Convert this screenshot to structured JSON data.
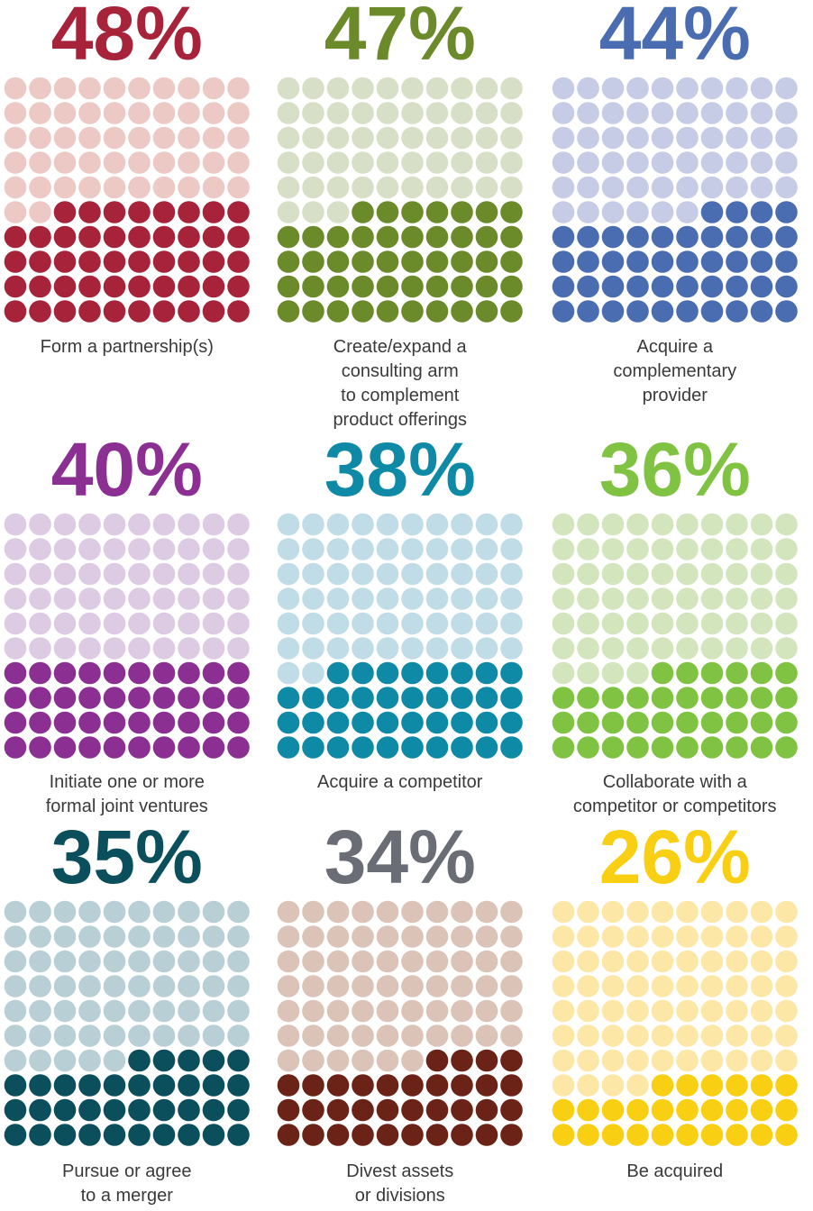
{
  "chart_data": [
    {
      "type": "waffle",
      "values": [
        48
      ],
      "value_labels": [
        "48%"
      ],
      "label": "Form a partnership(s)",
      "color": "#a6233a",
      "empty_color": "#ecc9c5",
      "title_color": "#a6233a"
    },
    {
      "type": "waffle",
      "values": [
        47
      ],
      "value_labels": [
        "47%"
      ],
      "label": "Create/expand a\nconsulting arm\nto complement\nproduct offerings",
      "color": "#6b8a2a",
      "empty_color": "#d8dfc7",
      "title_color": "#6b8a2a"
    },
    {
      "type": "waffle",
      "values": [
        44
      ],
      "value_labels": [
        "44%"
      ],
      "label": "Acquire a\ncomplementary\nprovider",
      "color": "#4a6cb0",
      "empty_color": "#c6cce6",
      "title_color": "#4a6cb0"
    },
    {
      "type": "waffle",
      "values": [
        40
      ],
      "value_labels": [
        "40%"
      ],
      "label": "Initiate one or more\nformal joint ventures",
      "color": "#8b2f92",
      "empty_color": "#dccbe3",
      "title_color": "#8b2f92"
    },
    {
      "type": "waffle",
      "values": [
        38
      ],
      "value_labels": [
        "38%"
      ],
      "label": "Acquire a competitor",
      "color": "#0f8aa6",
      "empty_color": "#c0dce6",
      "title_color": "#0f8aa6"
    },
    {
      "type": "waffle",
      "values": [
        36
      ],
      "value_labels": [
        "36%"
      ],
      "label": "Collaborate with a\ncompetitor or competitors",
      "color": "#80c342",
      "empty_color": "#d3e5bd",
      "title_color": "#80c342"
    },
    {
      "type": "waffle",
      "values": [
        35
      ],
      "value_labels": [
        "35%"
      ],
      "label": "Pursue or agree\nto a merger",
      "color": "#0b4f5c",
      "empty_color": "#b8cfd6",
      "title_color": "#0b4f5c"
    },
    {
      "type": "waffle",
      "values": [
        34
      ],
      "value_labels": [
        "34%"
      ],
      "label": "Divest assets\nor divisions",
      "color": "#6b2318",
      "empty_color": "#dbc3b8",
      "title_color": "#6a6d75"
    },
    {
      "type": "waffle",
      "values": [
        26
      ],
      "value_labels": [
        "26%"
      ],
      "label": "Be acquired",
      "color": "#f8cf12",
      "empty_color": "#fde7a6",
      "title_color": "#f8cf12"
    }
  ]
}
